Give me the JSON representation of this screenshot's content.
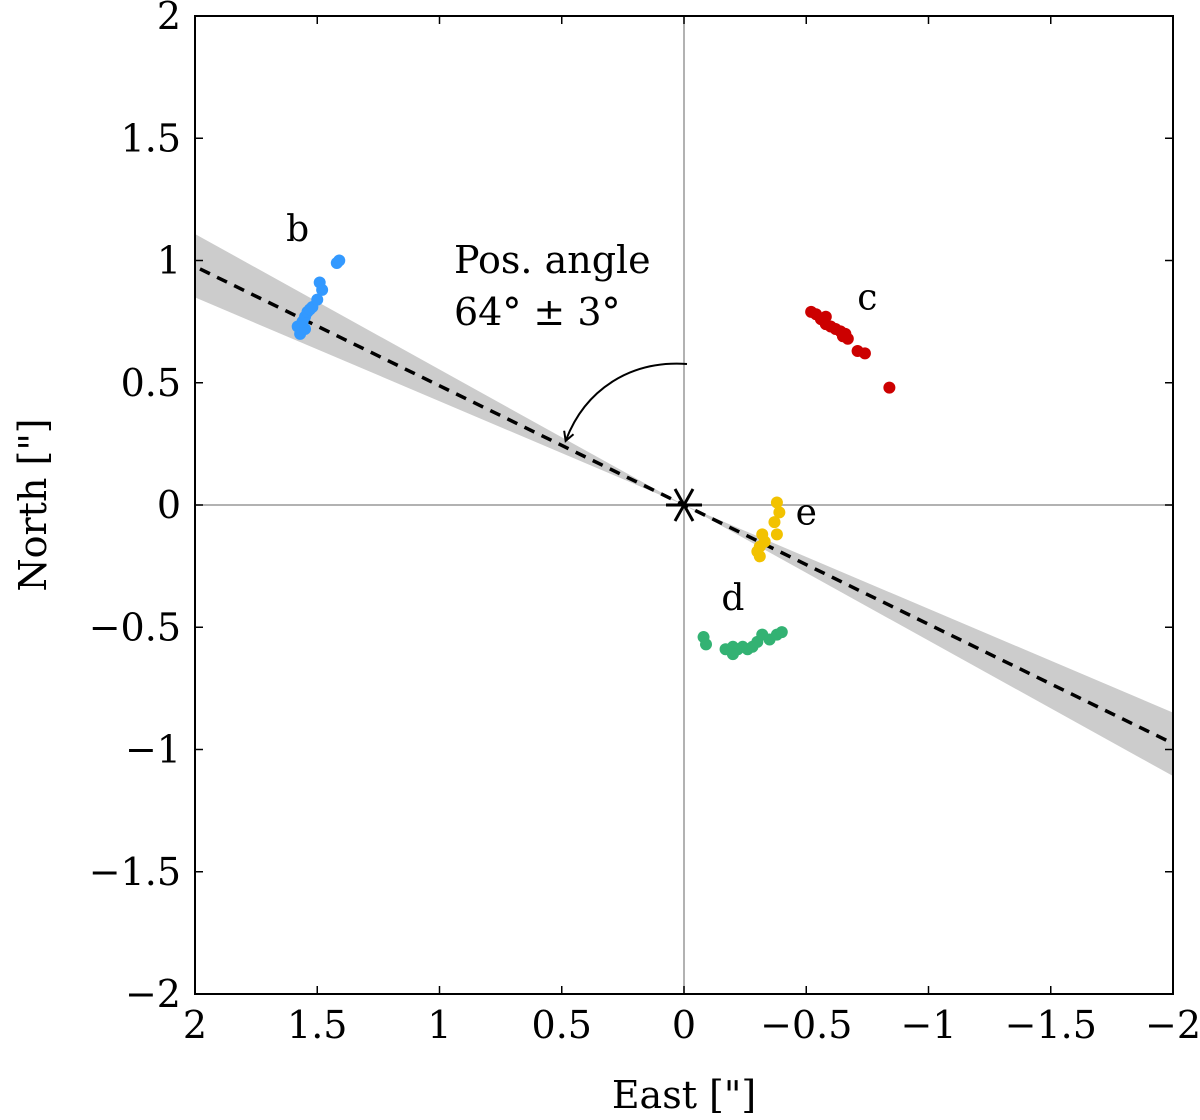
{
  "chart_data": {
    "type": "scatter",
    "title": "",
    "xlabel": "East [\"]",
    "ylabel": "North [\"]",
    "xlim": [
      2,
      -2
    ],
    "ylim": [
      -2,
      2
    ],
    "x_reversed": true,
    "x_ticks": [
      2,
      1.5,
      1,
      0.5,
      0,
      -0.5,
      -1,
      -1.5,
      -2
    ],
    "y_ticks": [
      2,
      1.5,
      1,
      0.5,
      0,
      -0.5,
      -1,
      -1.5,
      -2
    ],
    "x_tick_labels": [
      "2",
      "1.5",
      "1",
      "0.5",
      "0",
      "−0.5",
      "−1",
      "−1.5",
      "−2"
    ],
    "y_tick_labels": [
      "2",
      "1.5",
      "1",
      "0.5",
      "0",
      "−0.5",
      "−1",
      "−1.5",
      "−2"
    ],
    "star": {
      "name": "star",
      "x": 0,
      "y": 0,
      "marker": "asterisk"
    },
    "position_angle": {
      "angle_deg": 64,
      "uncertainty_deg": 3,
      "line_style": "dashed",
      "band_color": "#cccccc",
      "annotation_lines": [
        "Pos. angle",
        "64° ± 3°"
      ]
    },
    "series": [
      {
        "name": "b",
        "color": "#3399ff",
        "label": "b",
        "label_at": [
          1.58,
          1.08
        ],
        "points": [
          [
            1.57,
            0.7
          ],
          [
            1.58,
            0.73
          ],
          [
            1.55,
            0.72
          ],
          [
            1.56,
            0.75
          ],
          [
            1.55,
            0.77
          ],
          [
            1.54,
            0.79
          ],
          [
            1.53,
            0.8
          ],
          [
            1.52,
            0.81
          ],
          [
            1.5,
            0.84
          ],
          [
            1.48,
            0.88
          ],
          [
            1.49,
            0.91
          ],
          [
            1.42,
            0.99
          ],
          [
            1.41,
            1.0
          ]
        ]
      },
      {
        "name": "c",
        "color": "#cc0000",
        "label": "c",
        "label_at": [
          -0.75,
          0.8
        ],
        "points": [
          [
            -0.52,
            0.79
          ],
          [
            -0.54,
            0.78
          ],
          [
            -0.56,
            0.76
          ],
          [
            -0.58,
            0.77
          ],
          [
            -0.58,
            0.74
          ],
          [
            -0.6,
            0.73
          ],
          [
            -0.62,
            0.72
          ],
          [
            -0.64,
            0.71
          ],
          [
            -0.66,
            0.7
          ],
          [
            -0.65,
            0.69
          ],
          [
            -0.67,
            0.68
          ],
          [
            -0.71,
            0.63
          ],
          [
            -0.74,
            0.62
          ],
          [
            -0.84,
            0.48
          ]
        ]
      },
      {
        "name": "d",
        "color": "#33b273",
        "label": "d",
        "label_at": [
          -0.2,
          -0.43
        ],
        "points": [
          [
            -0.08,
            -0.54
          ],
          [
            -0.09,
            -0.57
          ],
          [
            -0.17,
            -0.59
          ],
          [
            -0.2,
            -0.58
          ],
          [
            -0.22,
            -0.59
          ],
          [
            -0.2,
            -0.61
          ],
          [
            -0.24,
            -0.58
          ],
          [
            -0.26,
            -0.59
          ],
          [
            -0.28,
            -0.58
          ],
          [
            -0.3,
            -0.56
          ],
          [
            -0.32,
            -0.53
          ],
          [
            -0.35,
            -0.55
          ],
          [
            -0.38,
            -0.53
          ],
          [
            -0.4,
            -0.52
          ]
        ]
      },
      {
        "name": "e",
        "color": "#f2c200",
        "label": "e",
        "label_at": [
          -0.5,
          -0.08
        ],
        "points": [
          [
            -0.38,
            0.01
          ],
          [
            -0.39,
            -0.03
          ],
          [
            -0.37,
            -0.07
          ],
          [
            -0.38,
            -0.12
          ],
          [
            -0.32,
            -0.12
          ],
          [
            -0.33,
            -0.15
          ],
          [
            -0.31,
            -0.17
          ],
          [
            -0.3,
            -0.19
          ],
          [
            -0.31,
            -0.21
          ]
        ]
      }
    ]
  }
}
